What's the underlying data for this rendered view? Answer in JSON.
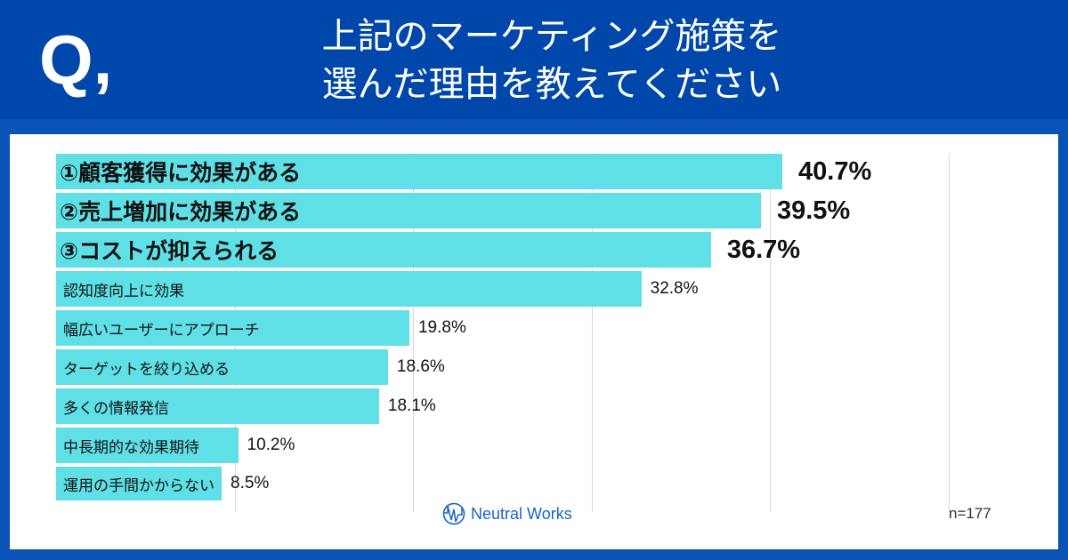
{
  "header": {
    "q": "Q,",
    "title_line1": "上記のマーケティング施策を",
    "title_line2": "選んだ理由を教えてください"
  },
  "chart_data": {
    "type": "bar",
    "orientation": "horizontal",
    "categories": [
      "①顧客獲得に効果がある",
      "②売上増加に効果がある",
      "③コストが抑えられる",
      "認知度向上に効果",
      "幅広いユーザーにアプローチ",
      "ターゲットを絞り込める",
      "多くの情報発信",
      "中長期的な効果期待",
      "運用の手間かからない"
    ],
    "values": [
      40.7,
      39.5,
      36.7,
      32.8,
      19.8,
      18.6,
      18.1,
      10.2,
      8.5
    ],
    "value_labels": [
      "40.7%",
      "39.5%",
      "36.7%",
      "32.8%",
      "19.8%",
      "18.6%",
      "18.1%",
      "10.2%",
      "8.5%"
    ],
    "unit": "%",
    "xlim": [
      0,
      50
    ],
    "grid": true,
    "bar_color": "#5ee0e6"
  },
  "footer": {
    "logo": "Neutral Works",
    "n": "n=177"
  },
  "colors": {
    "header": "#0047ab",
    "border": "#0b52b8",
    "bar": "#5ee0e6",
    "logo": "#1565c8"
  }
}
